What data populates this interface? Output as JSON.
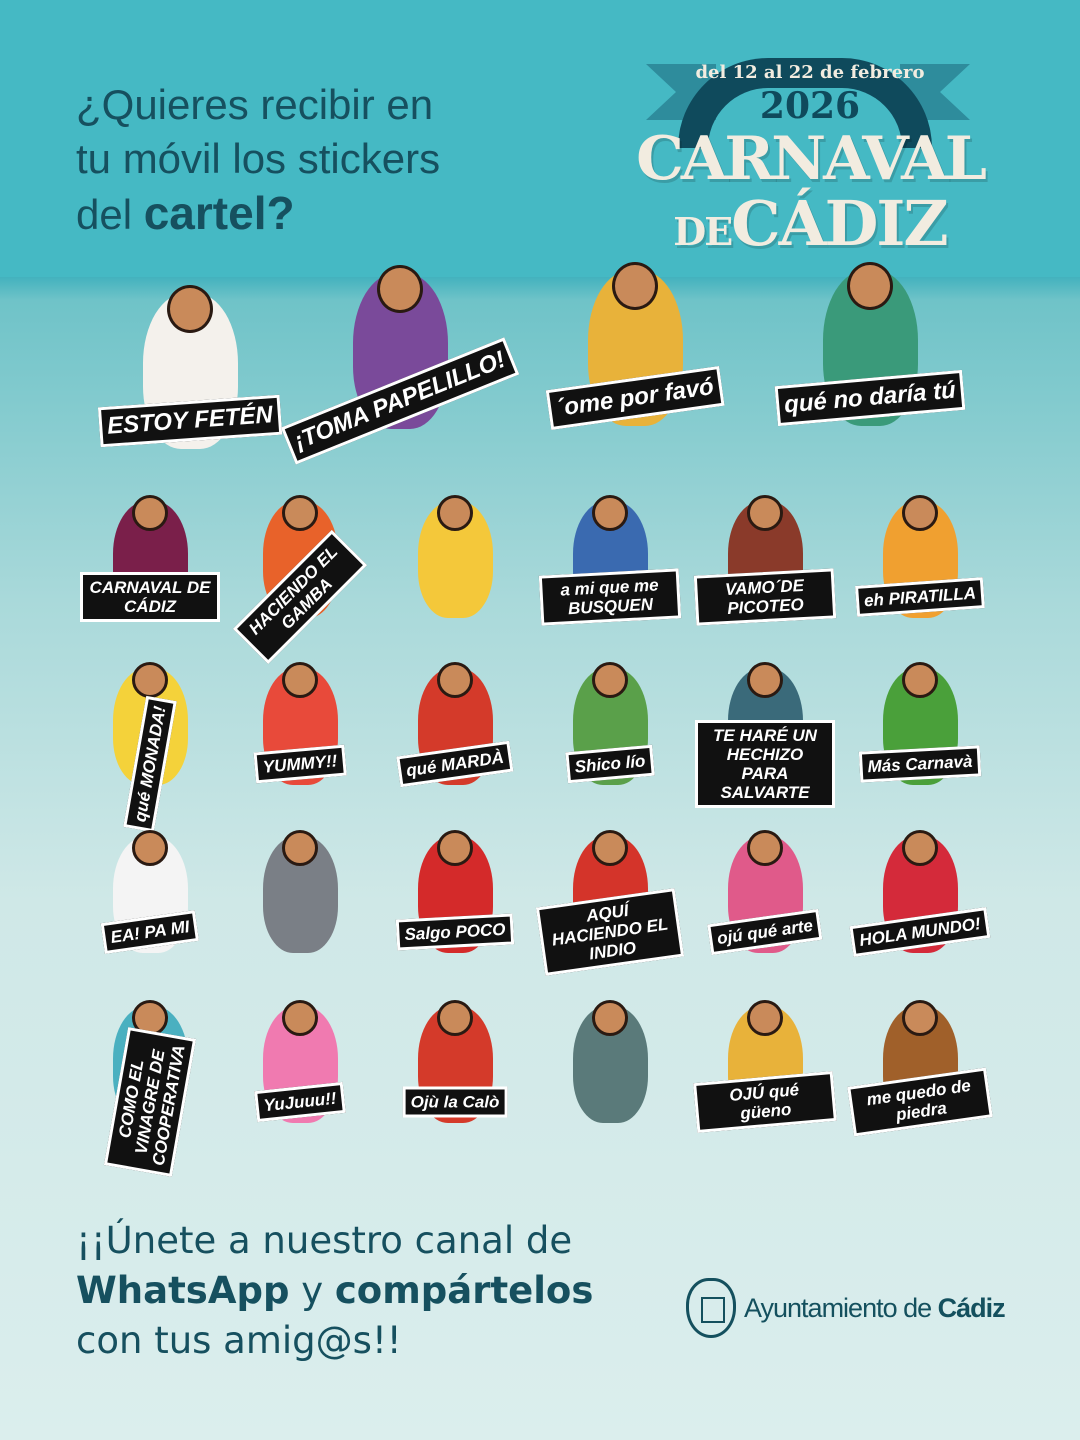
{
  "header": {
    "question_lines": [
      "¿Quieres recibir en",
      "tu móvil los stickers",
      "del "
    ],
    "question_bold": "cartel?",
    "background_color": "#45b9c4",
    "text_color": "#16505f"
  },
  "logo": {
    "dates": "del 12 al 22 de febrero",
    "year": "2026",
    "title_line1": "CARNAVAL",
    "title_de": "DE",
    "title_line2": "CÁDIZ"
  },
  "featured_stickers": [
    {
      "label": "ESTOY FETÉN",
      "color": "#f4f1ec"
    },
    {
      "label": "¡TOMA PAPELILLO!",
      "color": "#7a4a9a"
    },
    {
      "label": "´ome por favó",
      "color": "#e8b23a"
    },
    {
      "label": "qué no daría tú",
      "color": "#3a9a7a"
    }
  ],
  "stickers": [
    {
      "label": "CARNAVAL DE CÁDIZ",
      "color": "#7a1f4a"
    },
    {
      "label": "HACIENDO EL GAMBA",
      "color": "#e8622a"
    },
    {
      "label": "",
      "color": "#f4c83a"
    },
    {
      "label": "a mi que me BUSQUEN",
      "color": "#3a6ab0"
    },
    {
      "label": "VAMO´DE PICOTEO",
      "color": "#8a3a2a"
    },
    {
      "label": "eh PIRATILLA",
      "color": "#f0a030"
    },
    {
      "label": "qué MONADA!",
      "color": "#f4d23a"
    },
    {
      "label": "YUMMY!!",
      "color": "#e84a3a"
    },
    {
      "label": "qué MARDÀ",
      "color": "#d43a2a"
    },
    {
      "label": "Shico lío",
      "color": "#5aa04a"
    },
    {
      "label": "TE HARÉ UN HECHIZO PARA SALVARTE",
      "color": "#3a6a7a"
    },
    {
      "label": "Más Carnavà",
      "color": "#4aa03a"
    },
    {
      "label": "EA! PA MI",
      "color": "#f4f4f4"
    },
    {
      "label": "",
      "color": "#7a7f86"
    },
    {
      "label": "Salgo POCO",
      "color": "#d42a2a"
    },
    {
      "label": "AQUÍ HACIENDO EL INDIO",
      "color": "#d4342a"
    },
    {
      "label": "ojú qué arte",
      "color": "#e05a8a"
    },
    {
      "label": "HOLA MUNDO!",
      "color": "#d42a3a"
    },
    {
      "label": "COMO EL VINAGRE DE COOPERATIVA",
      "color": "#4ab0c0"
    },
    {
      "label": "YuJuuu!!",
      "color": "#f07ab0"
    },
    {
      "label": "Ojù la Calò",
      "color": "#d43a2a"
    },
    {
      "label": "",
      "color": "#5a7a7a"
    },
    {
      "label": "OJÚ qué güeno",
      "color": "#e8b23a"
    },
    {
      "label": "me quedo de piedra",
      "color": "#a0602a"
    }
  ],
  "footer": {
    "line1": "¡¡Únete a nuestro canal de",
    "line2_bold": "WhatsApp",
    "line2_rest": " y ",
    "line2_bold2": "compártelos",
    "line3": "con tus amig@s!!",
    "org_regular": "Ayuntamiento de ",
    "org_bold": "Cádiz"
  }
}
